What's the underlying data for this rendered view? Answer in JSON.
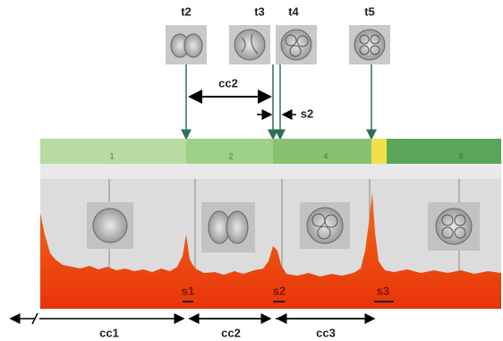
{
  "timepoints": [
    "t2",
    "t3",
    "t4",
    "t5"
  ],
  "top_intervals": {
    "cycle": "cc2",
    "synchrony": "s2"
  },
  "stages": [
    "1",
    "2",
    "4",
    "8"
  ],
  "synchrony": [
    "s1",
    "s2",
    "s3"
  ],
  "cycles": [
    "cc1",
    "cc2",
    "cc3"
  ]
}
